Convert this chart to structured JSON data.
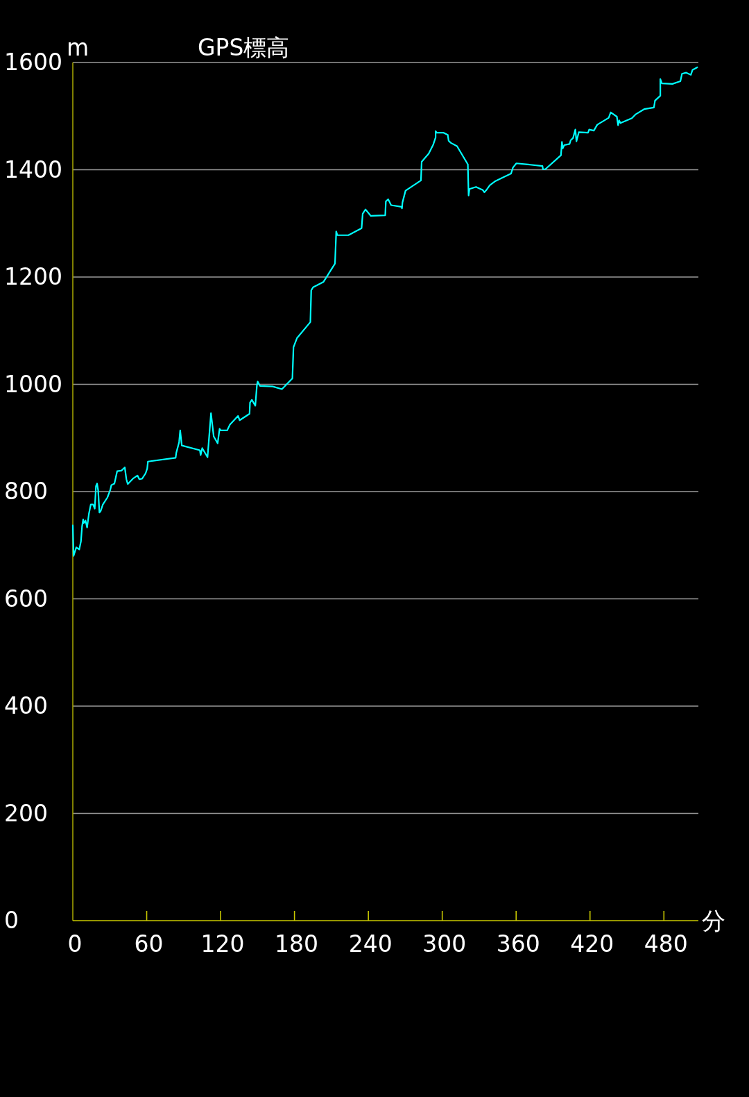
{
  "chart_data": {
    "type": "line",
    "title": "GPS標高",
    "xlabel": "分",
    "ylabel": "m",
    "xlim": [
      0,
      508
    ],
    "ylim": [
      0,
      1600
    ],
    "xticks": [
      0,
      60,
      120,
      180,
      240,
      300,
      360,
      420,
      480
    ],
    "yticks": [
      0,
      200,
      400,
      600,
      800,
      1000,
      1200,
      1400,
      1600
    ],
    "grid": "y",
    "series": [
      {
        "color": "#00ffff",
        "x": [
          0,
          0.6,
          2.8,
          5.2,
          6.6,
          7.5,
          8.4,
          8.8,
          10.3,
          11.6,
          13.1,
          14.6,
          16.5,
          17.8,
          18.8,
          19.7,
          20.6,
          21.6,
          22.5,
          24.4,
          28.1,
          30.4,
          31.3,
          33.8,
          36.0,
          39.4,
          42.2,
          43.5,
          44.6,
          48.8,
          52.5,
          54.0,
          56.3,
          59.1,
          60.4,
          61.0,
          83.5,
          84.0,
          86.3,
          87.2,
          88.5,
          103.2,
          103.8,
          105.1,
          109.4,
          112.2,
          114.4,
          117.6,
          119.2,
          120.1,
          125.3,
          127.6,
          134.2,
          135.5,
          143.5,
          143.9,
          145.4,
          148.2,
          149.5,
          150.1,
          152.0,
          162.3,
          169.8,
          178.3,
          179.2,
          182.0,
          192.9,
          193.6,
          195.1,
          203.6,
          212.9,
          213.9,
          214.8,
          223.8,
          234.5,
          235.4,
          237.7,
          242.0,
          253.7,
          254.2,
          256.1,
          258.5,
          266.9,
          267.3,
          267.7,
          270.2,
          282.7,
          283.3,
          289.0,
          292.7,
          294.6,
          294.6,
          295.5,
          301.1,
          304.5,
          305.2,
          307.1,
          312.0,
          320.8,
          321.4,
          322.1,
          327.4,
          333.0,
          334.2,
          335.8,
          338.6,
          343.3,
          355.9,
          357.4,
          360.2,
          381.4,
          381.8,
          383.7,
          396.4,
          397.2,
          397.9,
          399.1,
          403.4,
          404.3,
          406.2,
          408.1,
          409.0,
          410.9,
          418.4,
          419.3,
          423.1,
          425.9,
          435.2,
          436.8,
          441.8,
          442.8,
          443.7,
          444.7,
          454.0,
          456.9,
          464.0,
          471.9,
          472.8,
          477.1,
          477.1,
          478.4,
          486.9,
          493.4,
          494.7,
          498.1,
          501.9,
          503.2,
          507.1
        ],
        "values": [
          737,
          680,
          696,
          692,
          707,
          735,
          748,
          741,
          746,
          733,
          759,
          776,
          776,
          768,
          810,
          815,
          802,
          761,
          763,
          776,
          789,
          803,
          812,
          815,
          838,
          839,
          845,
          823,
          814,
          824,
          830,
          823,
          824,
          834,
          843,
          856,
          863,
          872,
          892,
          914,
          886,
          877,
          868,
          881,
          864,
          946,
          903,
          890,
          917,
          914,
          914,
          925,
          941,
          933,
          945,
          966,
          971,
          960,
          998,
          1005,
          997,
          996,
          991,
          1011,
          1069,
          1086,
          1116,
          1175,
          1181,
          1191,
          1225,
          1285,
          1278,
          1278,
          1291,
          1318,
          1326,
          1314,
          1315,
          1341,
          1345,
          1334,
          1331,
          1328,
          1339,
          1361,
          1380,
          1415,
          1430,
          1447,
          1460,
          1472,
          1469,
          1469,
          1465,
          1454,
          1450,
          1444,
          1410,
          1352,
          1364,
          1368,
          1362,
          1358,
          1362,
          1371,
          1379,
          1393,
          1404,
          1412,
          1407,
          1401,
          1401,
          1427,
          1452,
          1440,
          1446,
          1448,
          1455,
          1459,
          1475,
          1453,
          1470,
          1469,
          1475,
          1473,
          1484,
          1497,
          1507,
          1499,
          1483,
          1492,
          1487,
          1496,
          1503,
          1513,
          1516,
          1529,
          1538,
          1569,
          1561,
          1560,
          1565,
          1579,
          1581,
          1577,
          1586,
          1591
        ]
      }
    ]
  }
}
